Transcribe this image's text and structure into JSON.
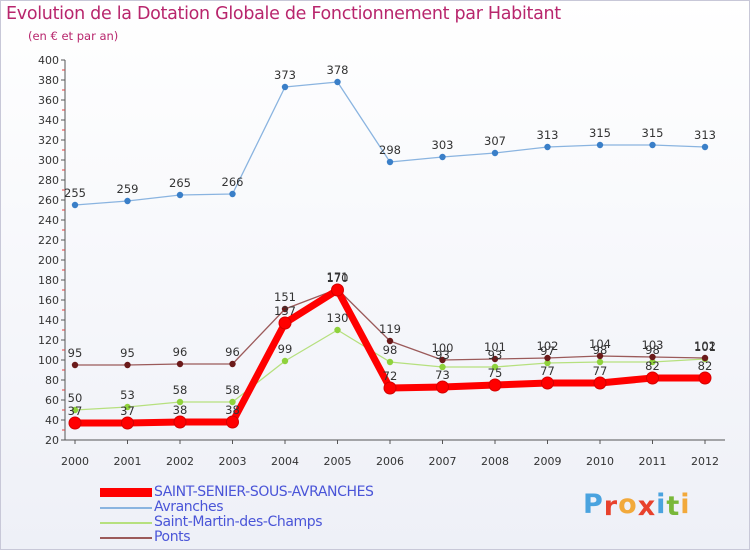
{
  "header": {
    "title": "Evolution de la Dotation Globale de Fonctionnement par Habitant",
    "subtitle": "(en € et par an)"
  },
  "logo": {
    "text": "Proxiti",
    "letters": [
      "P",
      "r",
      "o",
      "x",
      "i",
      "t",
      "i"
    ],
    "colors": [
      "#4aa3df",
      "#e8412c",
      "#f2a93b",
      "#e8412c",
      "#4aa3df",
      "#79b83a",
      "#f2a93b"
    ]
  },
  "colors": {
    "title": "#b8266d",
    "legend_text": "#4a55d8",
    "axis": "#555555"
  },
  "chart_data": {
    "type": "line",
    "title": "Evolution de la Dotation Globale de Fonctionnement par Habitant",
    "subtitle": "(en € et par an)",
    "xlabel": "",
    "ylabel": "",
    "ylim": [
      20,
      400
    ],
    "ytick_step": 20,
    "grid": false,
    "legend_position": "bottom-left",
    "x": [
      "2000",
      "2001",
      "2002",
      "2003",
      "2004",
      "2005",
      "2006",
      "2007",
      "2008",
      "2009",
      "2010",
      "2011",
      "2012"
    ],
    "series": [
      {
        "name": "SAINT-SENIER-SOUS-AVRANCHES",
        "color": "#ff0000",
        "marker": "#ff0000",
        "thick": true,
        "values": [
          37,
          37,
          38,
          38,
          137,
          170,
          72,
          73,
          75,
          77,
          77,
          82,
          82
        ]
      },
      {
        "name": "Avranches",
        "color": "#8ab4e0",
        "marker": "#3a7fc8",
        "thick": false,
        "values": [
          255,
          259,
          265,
          266,
          373,
          378,
          298,
          303,
          307,
          313,
          315,
          315,
          313
        ]
      },
      {
        "name": "Saint-Martin-des-Champs",
        "color": "#b6e07e",
        "marker": "#8fd23c",
        "thick": false,
        "values": [
          50,
          53,
          58,
          58,
          99,
          130,
          98,
          93,
          93,
          97,
          98,
          98,
          101
        ]
      },
      {
        "name": "Ponts",
        "color": "#9b5a5a",
        "marker": "#6b1a1a",
        "thick": false,
        "values": [
          95,
          95,
          96,
          96,
          151,
          171,
          119,
          100,
          101,
          102,
          104,
          103,
          102
        ]
      }
    ]
  }
}
